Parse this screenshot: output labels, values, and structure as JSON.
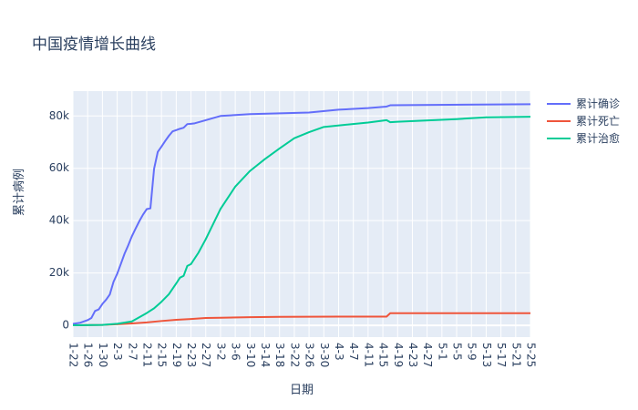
{
  "title": "中国疫情增长曲线",
  "chart_data": {
    "type": "line",
    "xlabel": "日期",
    "ylabel": "累计病例",
    "x_ticks": [
      "1-22",
      "1-26",
      "1-30",
      "2-3",
      "2-7",
      "2-11",
      "2-15",
      "2-19",
      "2-23",
      "2-27",
      "3-2",
      "3-6",
      "3-10",
      "3-14",
      "3-18",
      "3-22",
      "3-26",
      "3-30",
      "4-3",
      "4-7",
      "4-11",
      "4-15",
      "4-19",
      "4-23",
      "4-27",
      "5-1",
      "5-5",
      "5-9",
      "5-13",
      "5-17",
      "5-21",
      "5-25"
    ],
    "y_ticks": [
      {
        "value": 0,
        "label": "0"
      },
      {
        "value": 20000,
        "label": "20k"
      },
      {
        "value": 40000,
        "label": "40k"
      },
      {
        "value": 60000,
        "label": "60k"
      },
      {
        "value": 80000,
        "label": "80k"
      }
    ],
    "ylim": [
      -4500,
      89500
    ],
    "grid": true,
    "legend_position": "top-right",
    "series": [
      {
        "name": "累计确诊",
        "color": "#636efa",
        "points": [
          [
            "1-22",
            548
          ],
          [
            "1-24",
            1000
          ],
          [
            "1-26",
            2000
          ],
          [
            "1-27",
            2800
          ],
          [
            "1-28",
            5500
          ],
          [
            "1-29",
            6100
          ],
          [
            "1-30",
            8200
          ],
          [
            "1-31",
            9800
          ],
          [
            "2-1",
            11800
          ],
          [
            "2-2",
            16600
          ],
          [
            "2-3",
            19700
          ],
          [
            "2-4",
            23500
          ],
          [
            "2-5",
            27400
          ],
          [
            "2-6",
            30600
          ],
          [
            "2-7",
            34100
          ],
          [
            "2-8",
            37000
          ],
          [
            "2-9",
            39800
          ],
          [
            "2-10",
            42300
          ],
          [
            "2-11",
            44400
          ],
          [
            "2-12",
            44700
          ],
          [
            "2-13",
            59800
          ],
          [
            "2-14",
            66300
          ],
          [
            "2-15",
            68300
          ],
          [
            "2-16",
            70400
          ],
          [
            "2-17",
            72400
          ],
          [
            "2-18",
            74100
          ],
          [
            "2-19",
            74600
          ],
          [
            "2-20",
            75100
          ],
          [
            "2-21",
            75500
          ],
          [
            "2-22",
            76900
          ],
          [
            "2-23",
            77000
          ],
          [
            "2-24",
            77200
          ],
          [
            "2-26",
            78000
          ],
          [
            "3-2",
            80000
          ],
          [
            "3-10",
            80700
          ],
          [
            "3-18",
            81000
          ],
          [
            "3-26",
            81300
          ],
          [
            "4-3",
            82400
          ],
          [
            "4-11",
            83000
          ],
          [
            "4-16",
            83600
          ],
          [
            "4-17",
            84100
          ],
          [
            "5-25",
            84500
          ]
        ]
      },
      {
        "name": "累计死亡",
        "color": "#ef553b",
        "points": [
          [
            "1-22",
            17
          ],
          [
            "1-30",
            170
          ],
          [
            "2-3",
            425
          ],
          [
            "2-7",
            720
          ],
          [
            "2-11",
            1100
          ],
          [
            "2-15",
            1660
          ],
          [
            "2-19",
            2120
          ],
          [
            "2-23",
            2440
          ],
          [
            "2-27",
            2790
          ],
          [
            "3-2",
            2910
          ],
          [
            "3-10",
            3130
          ],
          [
            "3-18",
            3240
          ],
          [
            "4-3",
            3320
          ],
          [
            "4-16",
            3340
          ],
          [
            "4-17",
            4630
          ],
          [
            "5-25",
            4640
          ]
        ]
      },
      {
        "name": "累计治愈",
        "color": "#00cc96",
        "points": [
          [
            "1-22",
            28
          ],
          [
            "1-30",
            150
          ],
          [
            "2-3",
            600
          ],
          [
            "2-7",
            1500
          ],
          [
            "2-11",
            4700
          ],
          [
            "2-13",
            6500
          ],
          [
            "2-15",
            9000
          ],
          [
            "2-17",
            11900
          ],
          [
            "2-19",
            16000
          ],
          [
            "2-20",
            18200
          ],
          [
            "2-21",
            18900
          ],
          [
            "2-22",
            22700
          ],
          [
            "2-23",
            23400
          ],
          [
            "2-25",
            27700
          ],
          [
            "2-27",
            32900
          ],
          [
            "3-2",
            44500
          ],
          [
            "3-6",
            53000
          ],
          [
            "3-10",
            59000
          ],
          [
            "3-14",
            63500
          ],
          [
            "3-18",
            67600
          ],
          [
            "3-22",
            71500
          ],
          [
            "3-26",
            73800
          ],
          [
            "3-30",
            75800
          ],
          [
            "4-11",
            77500
          ],
          [
            "4-16",
            78400
          ],
          [
            "4-17",
            77600
          ],
          [
            "4-19",
            77800
          ],
          [
            "5-5",
            78800
          ],
          [
            "5-13",
            79500
          ],
          [
            "5-25",
            79700
          ]
        ]
      }
    ]
  }
}
